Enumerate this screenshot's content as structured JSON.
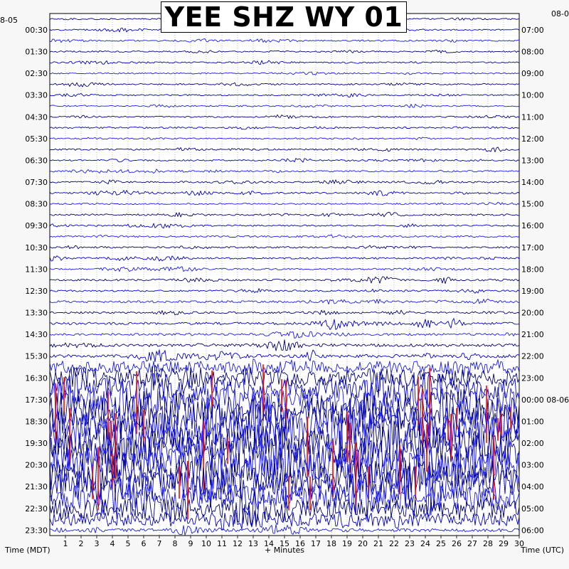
{
  "chart_data": {
    "type": "line",
    "title": "YEE SHZ WY 01",
    "xlabel": "+ Minutes",
    "left_axis_title": "Time (MDT)",
    "right_axis_title": "Time (UTC)",
    "left_date_label": "8-05",
    "right_date_label": "08-0",
    "x_ticks": [
      1,
      2,
      3,
      4,
      5,
      6,
      7,
      8,
      9,
      10,
      11,
      12,
      13,
      14,
      15,
      16,
      17,
      18,
      19,
      20,
      21,
      22,
      23,
      24,
      25,
      26,
      27,
      28,
      29,
      30
    ],
    "xlim": [
      0,
      30
    ],
    "row_minutes": 30,
    "row_count": 48,
    "left_labels": [
      "00:30",
      "01:30",
      "02:30",
      "03:30",
      "04:30",
      "05:30",
      "06:30",
      "07:30",
      "08:30",
      "09:30",
      "10:30",
      "11:30",
      "12:30",
      "13:30",
      "14:30",
      "15:30",
      "16:30",
      "17:30",
      "18:30",
      "19:30",
      "20:30",
      "21:30",
      "22:30",
      "23:30"
    ],
    "right_labels": [
      "07:00",
      "08:00",
      "09:00",
      "10:00",
      "11:00",
      "12:00",
      "13:00",
      "14:00",
      "15:00",
      "16:00",
      "17:00",
      "18:00",
      "19:00",
      "20:00",
      "21:00",
      "22:00",
      "23:00",
      "00:00 08-06",
      "01:00",
      "02:00",
      "03:00",
      "04:00",
      "05:00",
      "06:00"
    ],
    "series_colors": [
      "#00007a",
      "#0000d0",
      "#1a1aff"
    ],
    "clip_color": "#ff0000",
    "background": "#ffffff",
    "grid_color": "#9a9a9a",
    "grid": true,
    "activity_by_row": [
      0.05,
      0.05,
      0.06,
      0.05,
      0.05,
      0.05,
      0.06,
      0.05,
      0.06,
      0.05,
      0.06,
      0.05,
      0.07,
      0.06,
      0.07,
      0.06,
      0.07,
      0.06,
      0.08,
      0.06,
      0.08,
      0.07,
      0.08,
      0.07,
      0.1,
      0.08,
      0.12,
      0.1,
      0.15,
      0.12,
      0.18,
      0.22,
      0.3,
      0.42,
      0.6,
      0.75,
      0.9,
      1.0,
      1.0,
      1.0,
      1.0,
      1.0,
      0.95,
      0.9,
      0.7,
      0.5,
      0.35,
      0.22
    ]
  }
}
